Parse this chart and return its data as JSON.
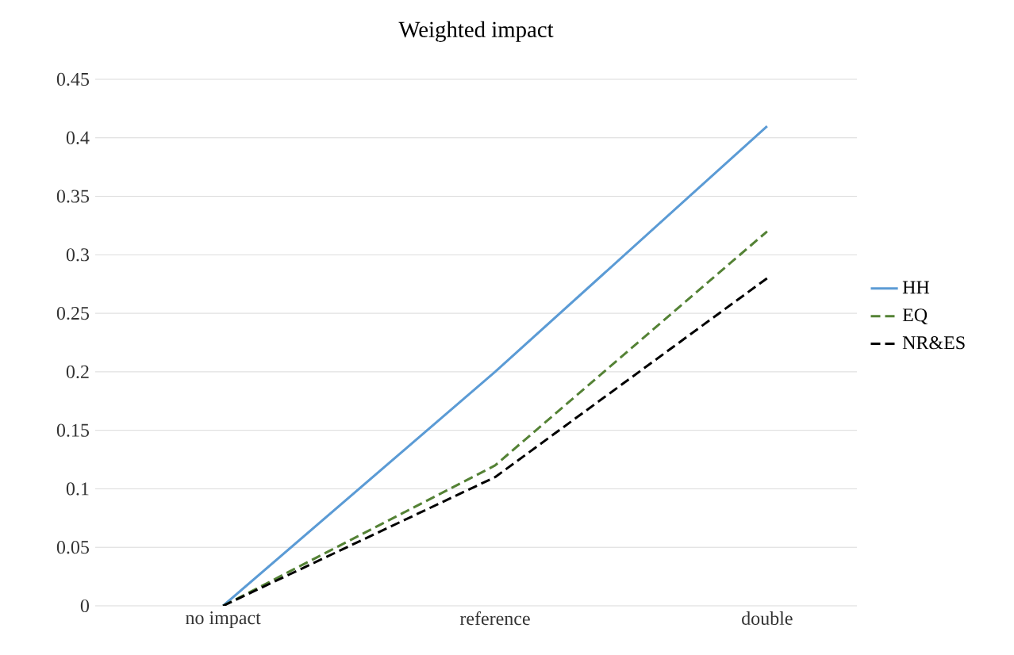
{
  "chart_data": {
    "type": "line",
    "title": "Weighted impact",
    "categories": [
      "no impact",
      "reference",
      "double"
    ],
    "series": [
      {
        "name": "HH",
        "color": "#5b9bd5",
        "line_style": "solid",
        "values": [
          0,
          0.2,
          0.41
        ]
      },
      {
        "name": "EQ",
        "color": "#548235",
        "line_style": "dashed",
        "values": [
          0,
          0.12,
          0.32
        ]
      },
      {
        "name": "NR&ES",
        "color": "#000000",
        "line_style": "dashed",
        "values": [
          0,
          0.11,
          0.28
        ]
      }
    ],
    "ylim": [
      0,
      0.45
    ],
    "yticks": [
      0,
      0.05,
      0.1,
      0.15,
      0.2,
      0.25,
      0.3,
      0.35,
      0.4,
      0.45
    ],
    "grid": "y",
    "legend": "right",
    "marker": "none"
  }
}
